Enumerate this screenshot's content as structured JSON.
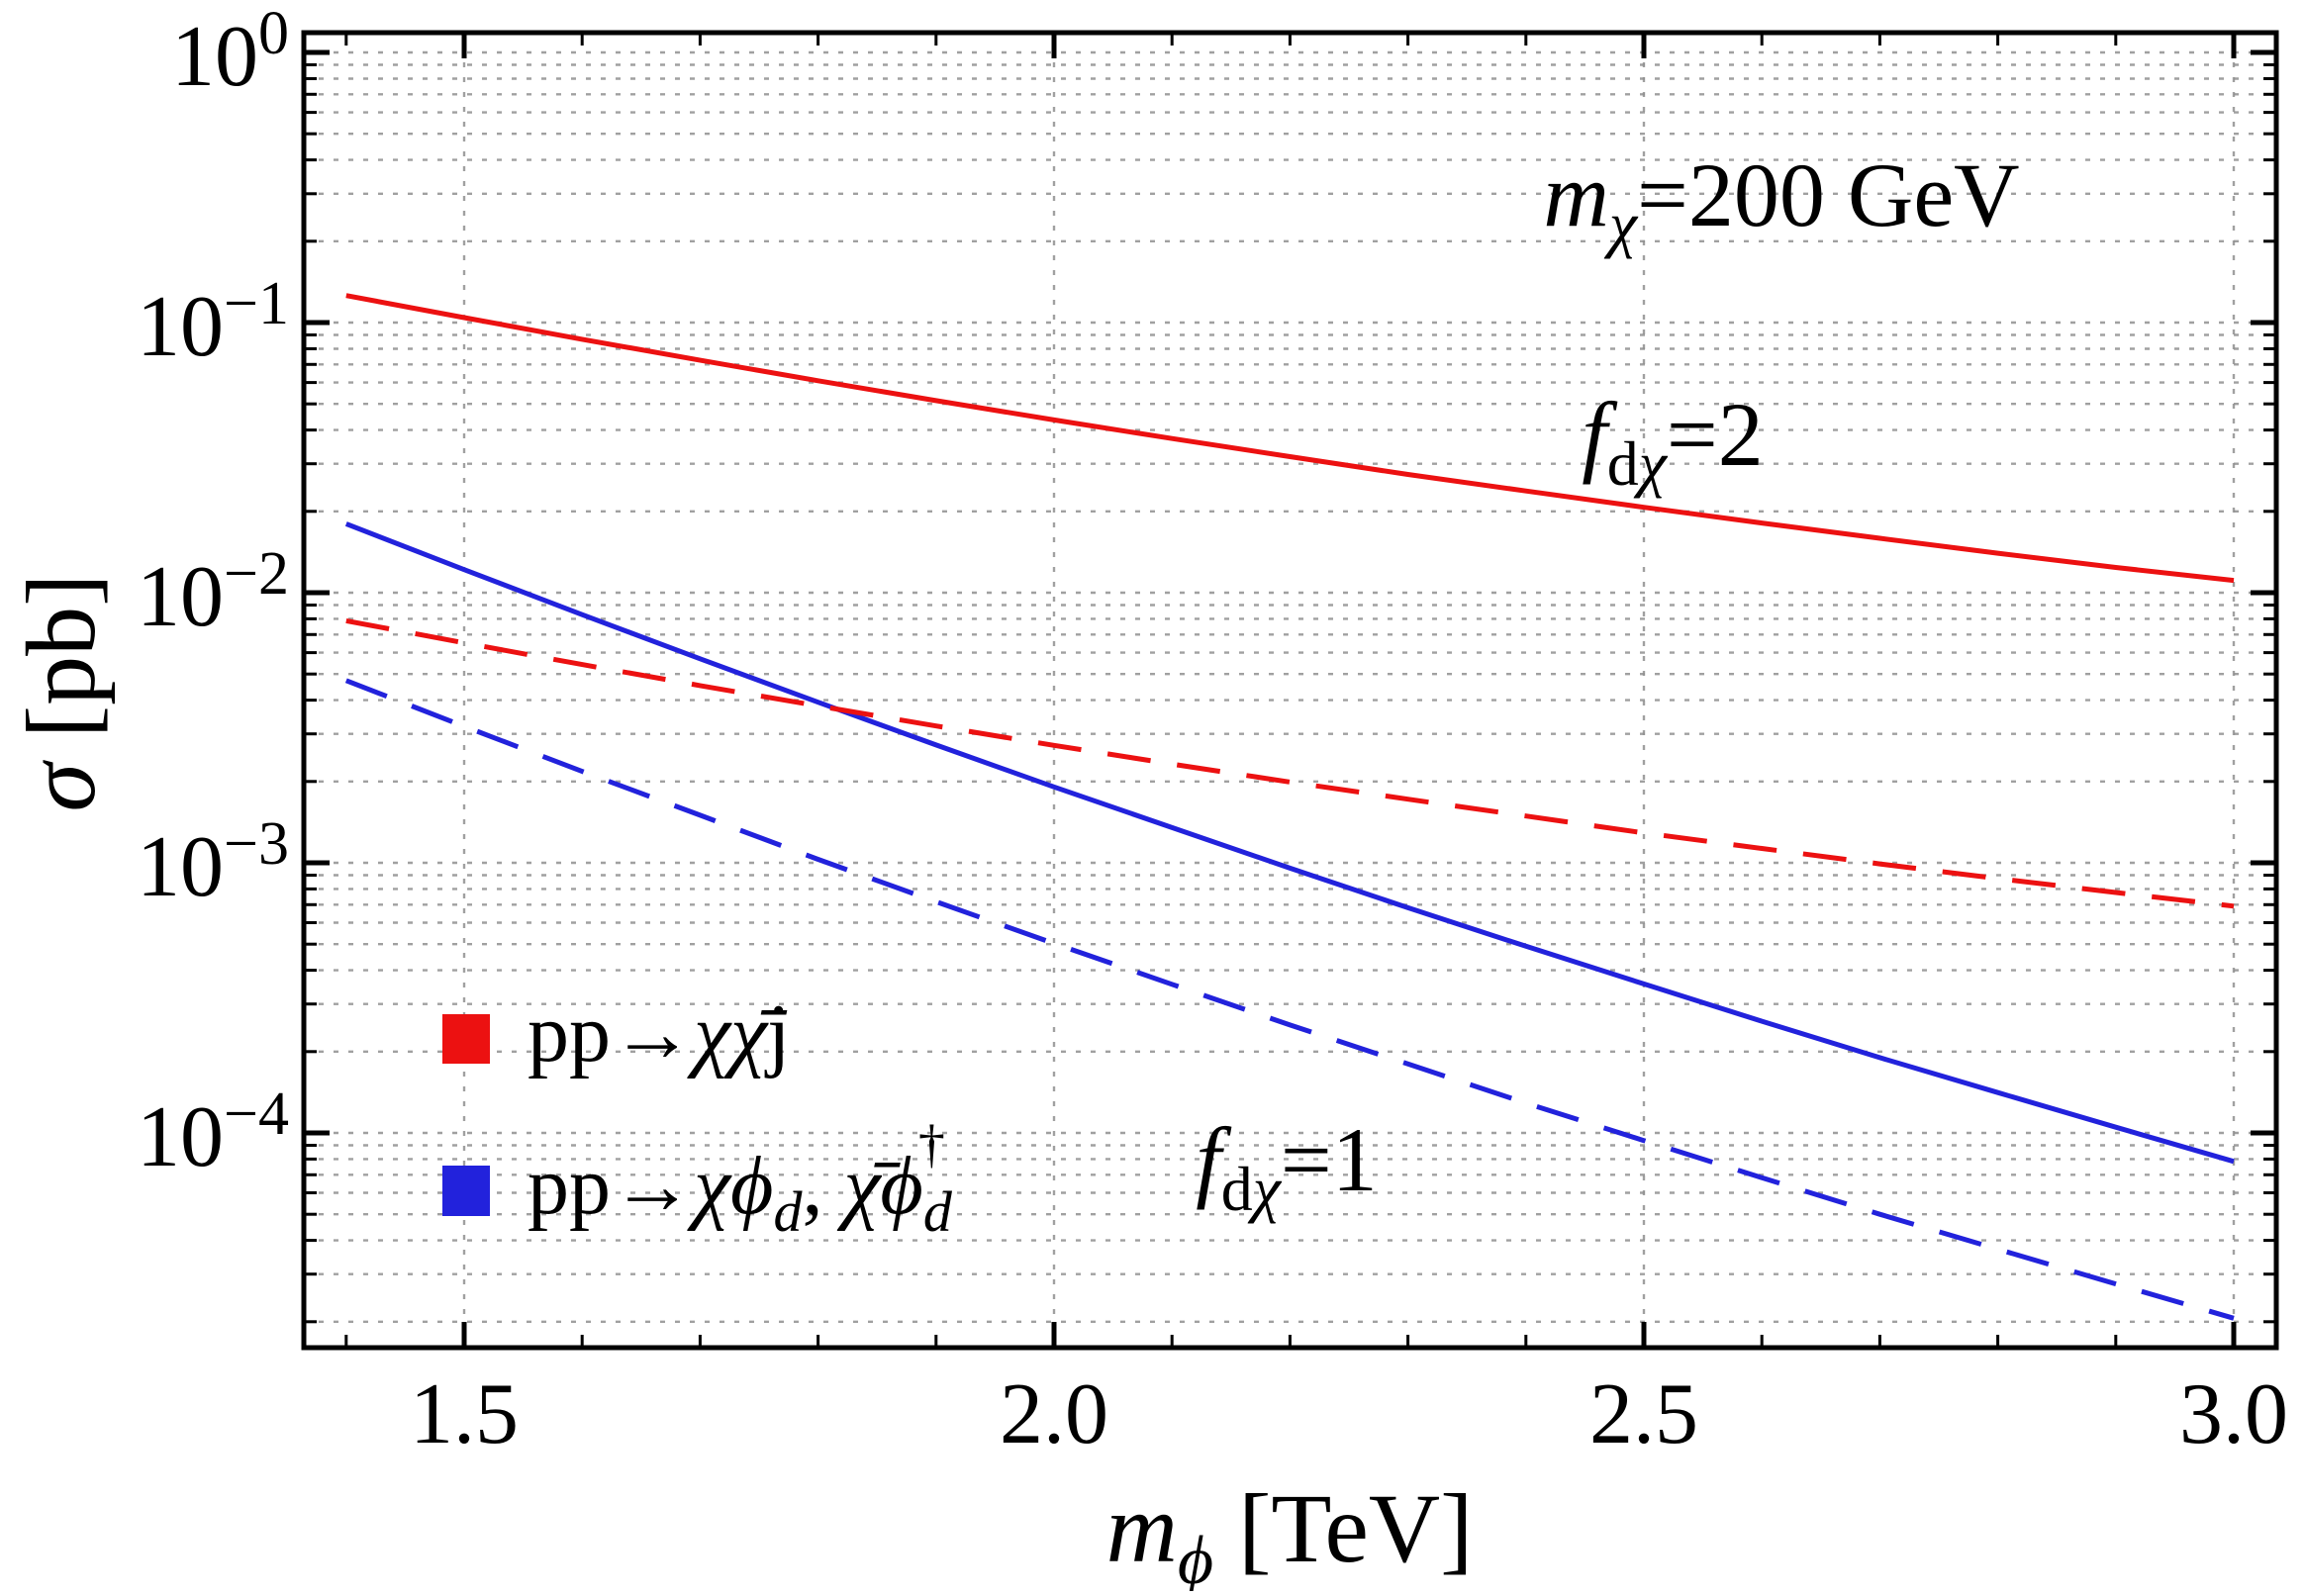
{
  "colors": {
    "red": "#ec1111",
    "blue": "#2222dc",
    "grid": "#8f8f8f",
    "frame": "#000000",
    "background": "#ffffff"
  },
  "axes": {
    "x": {
      "title": {
        "var": "m",
        "sub": "ϕ",
        "unit": " [TeV]"
      },
      "tick_labels": [
        "1.5",
        "2.0",
        "2.5",
        "3.0"
      ],
      "tick_values": [
        1.5,
        2.0,
        2.5,
        3.0
      ],
      "minor_step": 0.1
    },
    "y": {
      "title": {
        "var": "σ",
        "unit": " [pb]"
      },
      "tick_labels": [
        {
          "base": "10",
          "exp": "0"
        },
        {
          "base": "10",
          "exp": "−1"
        },
        {
          "base": "10",
          "exp": "−2"
        },
        {
          "base": "10",
          "exp": "−3"
        },
        {
          "base": "10",
          "exp": "−4"
        }
      ],
      "tick_exponents": [
        0,
        -1,
        -2,
        -3,
        -4
      ]
    }
  },
  "annotations": {
    "mass": {
      "var": "m",
      "sub": "χ",
      "rest": "=200 GeV"
    },
    "coupling_top": {
      "var": "f",
      "sub_d": "d",
      "sub_chi": "χ",
      "rest": "=2"
    },
    "coupling_bottom": {
      "var": "f",
      "sub_d": "d",
      "sub_chi": "χ",
      "rest": "=1"
    }
  },
  "legend": {
    "item1": {
      "pre": "pp→",
      "chi": "χ",
      "chibar": "χ̄",
      "suf": "j"
    },
    "item2": {
      "pre": "pp→",
      "chi": "χ",
      "phi": "ϕ",
      "sub1": "d",
      "mid": ", ",
      "chibar": "χ̄",
      "phi2": "ϕ",
      "sub2": "d",
      "dag": "†"
    }
  },
  "chart_data": {
    "type": "line",
    "title": "",
    "xlabel": "m_phi [TeV]",
    "ylabel": "sigma [pb]",
    "x_axis": "linear",
    "y_axis": "log10",
    "x_range": [
      1.3641,
      3.0361
    ],
    "y_log10_range": [
      -4.795,
      0.0733
    ],
    "grid": "dotted, horizontal at every log decade+subdecade, vertical at major x ticks",
    "legend_position": "inside lower-left",
    "x": [
      1.4,
      1.5,
      1.6,
      1.7,
      1.8,
      1.9,
      2.0,
      2.1,
      2.2,
      2.3,
      2.4,
      2.5,
      2.6,
      2.7,
      2.8,
      2.9,
      3.0
    ],
    "series": [
      {
        "key": "red_solid",
        "process": "pp→χχ̄j",
        "f_dchi": 2,
        "color": "#ec1111",
        "style": "solid",
        "sigma_pb": [
          0.1259,
          0.1043,
          0.0867,
          0.0725,
          0.0609,
          0.0514,
          0.0436,
          0.0372,
          0.0319,
          0.0274,
          0.0238,
          0.0207,
          0.0181,
          0.0159,
          0.014,
          0.0124,
          0.0111
        ]
      },
      {
        "key": "blue_solid",
        "process": "pp→χϕd, χ̄ϕd†",
        "f_dchi": 2,
        "color": "#2222dc",
        "style": "solid",
        "sigma_pb": [
          0.01799,
          0.01217,
          0.00829,
          0.00569,
          0.00393,
          0.00273,
          0.00191,
          0.00135,
          0.000955,
          0.000682,
          0.000491,
          0.000356,
          0.000259,
          0.00019,
          0.000141,
          0.000105,
          7.84e-05
        ]
      },
      {
        "key": "red_dashed",
        "process": "pp→χχ̄j",
        "f_dchi": 1,
        "color": "#ec1111",
        "style": "dashed",
        "sigma_pb": [
          0.00787,
          0.00652,
          0.00542,
          0.00453,
          0.00381,
          0.00321,
          0.00272,
          0.00232,
          0.00199,
          0.00172,
          0.00149,
          0.00129,
          0.00113,
          0.000991,
          0.000874,
          0.000776,
          0.000691
        ]
      },
      {
        "key": "blue_dashed",
        "process": "pp→χϕd, χ̄ϕd†",
        "f_dchi": 1,
        "color": "#2222dc",
        "style": "dashed",
        "sigma_pb": [
          0.00473,
          0.0032,
          0.00218,
          0.0015,
          0.00103,
          0.000718,
          0.000503,
          0.000355,
          0.000251,
          0.00018,
          0.000129,
          9.37e-05,
          6.82e-05,
          5e-05,
          3.71e-05,
          2.76e-05,
          2.06e-05
        ]
      }
    ]
  }
}
